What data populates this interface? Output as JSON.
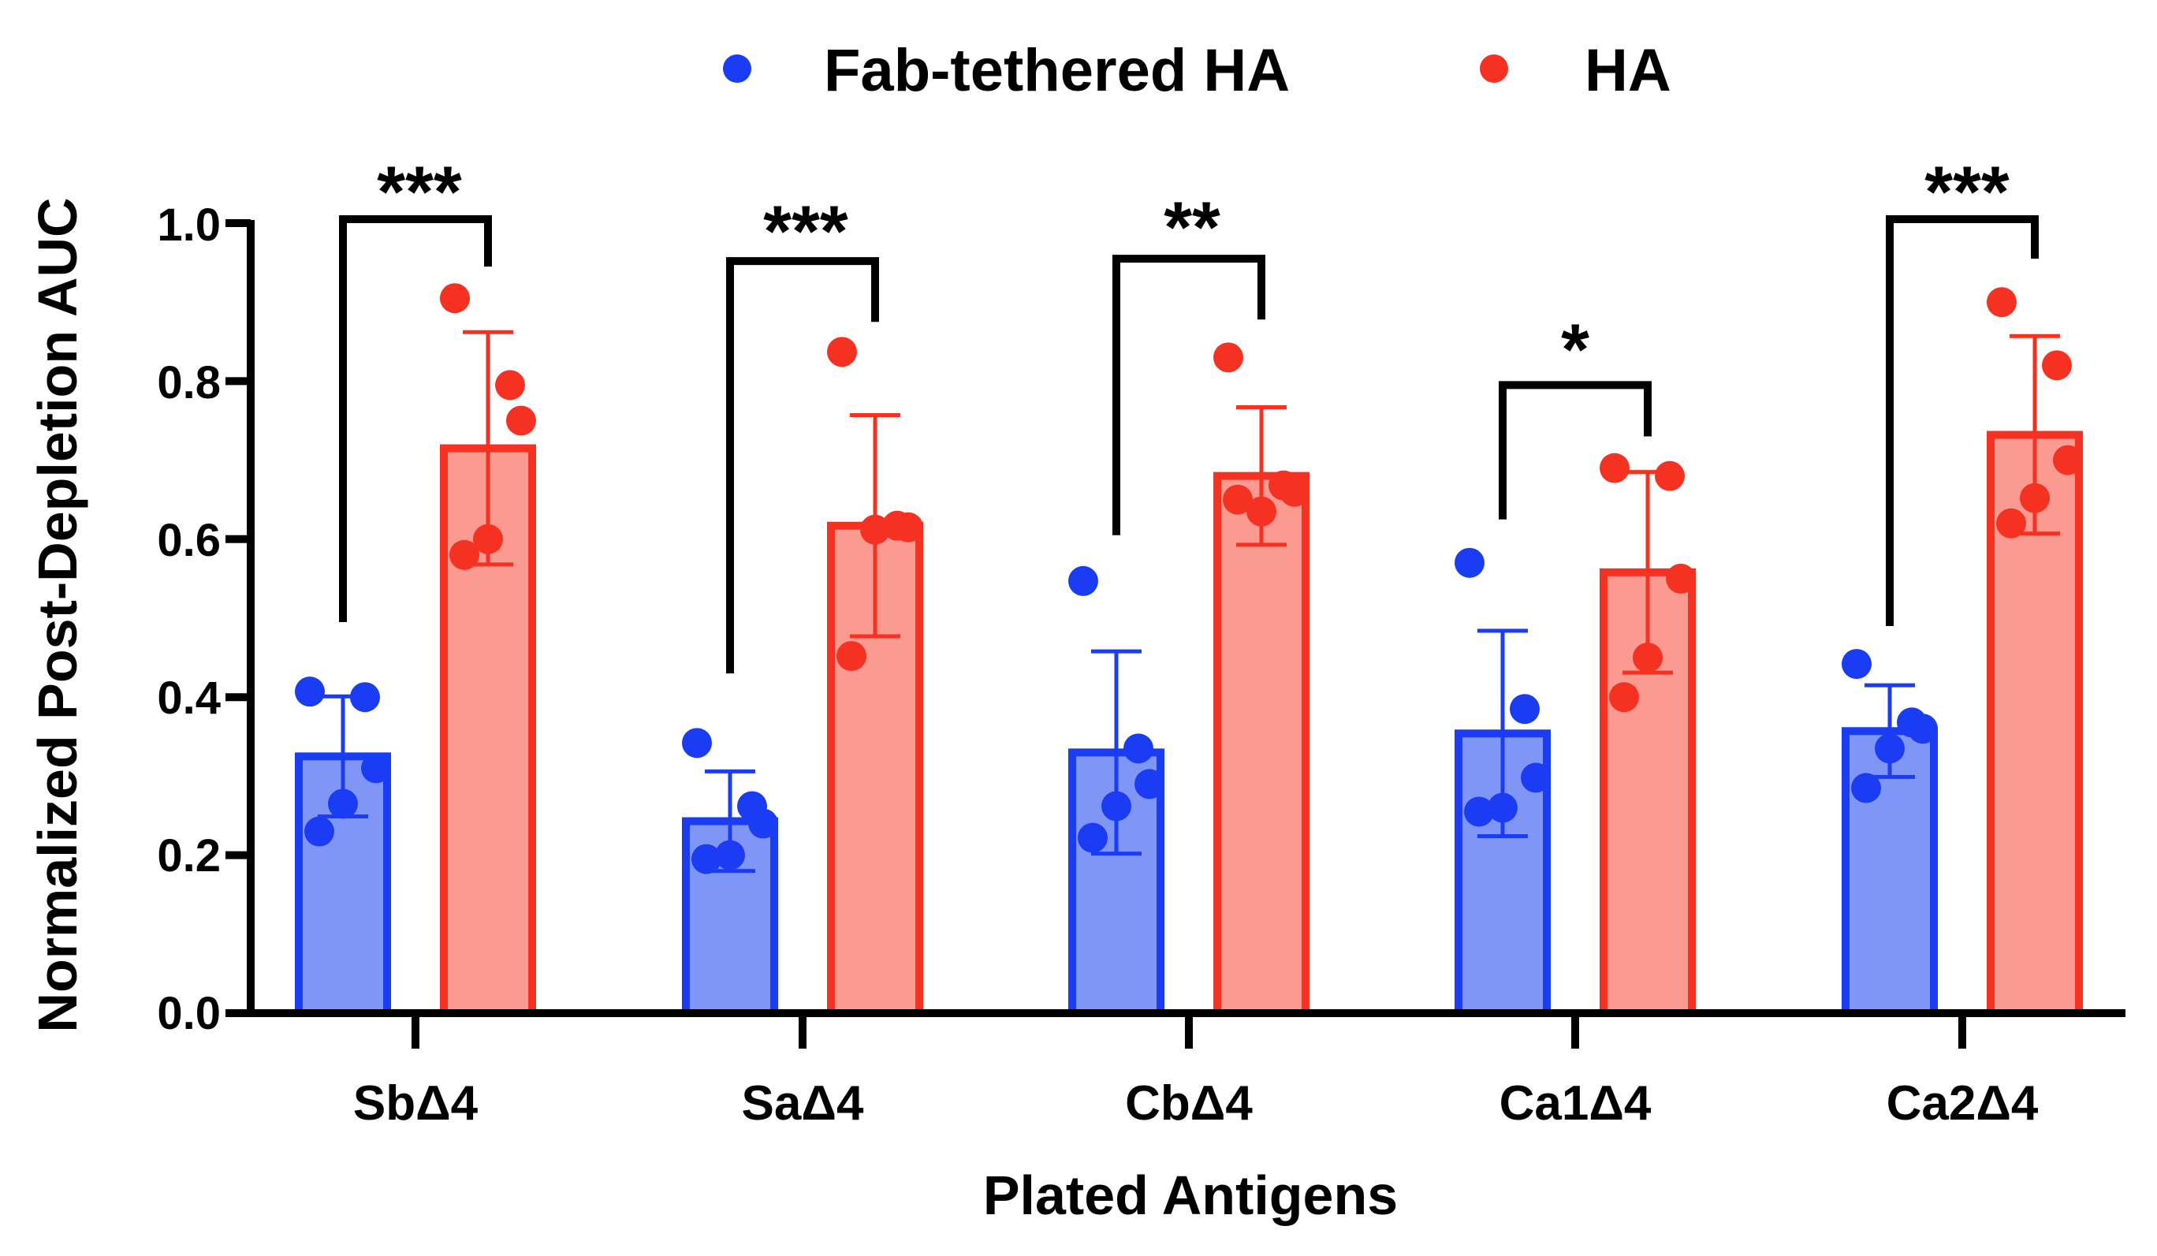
{
  "chart_data": {
    "type": "bar",
    "title": "",
    "xlabel": "Plated Antigens",
    "ylabel": "Normalized Post-Depletion AUC",
    "ylim": [
      0.0,
      1.0
    ],
    "yticks": [
      "0.0",
      "0.2",
      "0.4",
      "0.6",
      "0.8",
      "1.0"
    ],
    "categories": [
      "SbΔ4",
      "SaΔ4",
      "CbΔ4",
      "Ca1Δ4",
      "Ca2Δ4"
    ],
    "legend_position": "top",
    "series": [
      {
        "name": "Fab-tethered HA",
        "color": "#1a3cf2",
        "fill": "#8096f7",
        "point_color": "#1a3cf2",
        "values": [
          0.325,
          0.243,
          0.33,
          0.354,
          0.357
        ],
        "error": [
          0.076,
          0.063,
          0.128,
          0.13,
          0.058
        ],
        "points": [
          [
            0.407,
            0.4,
            0.31,
            0.265,
            0.23
          ],
          [
            0.342,
            0.262,
            0.24,
            0.2,
            0.195
          ],
          [
            0.547,
            0.335,
            0.29,
            0.262,
            0.222
          ],
          [
            0.57,
            0.385,
            0.298,
            0.26,
            0.255
          ],
          [
            0.442,
            0.368,
            0.36,
            0.335,
            0.285
          ]
        ]
      },
      {
        "name": "HA",
        "color": "#f53122",
        "fill": "#fa9a90",
        "point_color": "#f53122",
        "values": [
          0.715,
          0.617,
          0.68,
          0.558,
          0.732
        ],
        "error": [
          0.147,
          0.14,
          0.087,
          0.127,
          0.125
        ],
        "points": [
          [
            0.905,
            0.795,
            0.75,
            0.6,
            0.58
          ],
          [
            0.837,
            0.617,
            0.615,
            0.612,
            0.452
          ],
          [
            0.83,
            0.668,
            0.66,
            0.635,
            0.65
          ],
          [
            0.69,
            0.68,
            0.55,
            0.45,
            0.4
          ],
          [
            0.9,
            0.82,
            0.7,
            0.652,
            0.62
          ]
        ]
      }
    ],
    "significance": [
      {
        "category": "SbΔ4",
        "label": "***",
        "y_left": 0.495,
        "y_right": 0.945,
        "y_top": 1.005
      },
      {
        "category": "SaΔ4",
        "label": "***",
        "y_left": 0.43,
        "y_right": 0.875,
        "y_top": 0.952
      },
      {
        "category": "CbΔ4",
        "label": "**",
        "y_left": 0.605,
        "y_right": 0.878,
        "y_top": 0.955
      },
      {
        "category": "Ca1Δ4",
        "label": "*",
        "y_left": 0.625,
        "y_right": 0.73,
        "y_top": 0.795
      },
      {
        "category": "Ca2Δ4",
        "label": "***",
        "y_left": 0.49,
        "y_right": 0.955,
        "y_top": 1.005
      }
    ]
  }
}
